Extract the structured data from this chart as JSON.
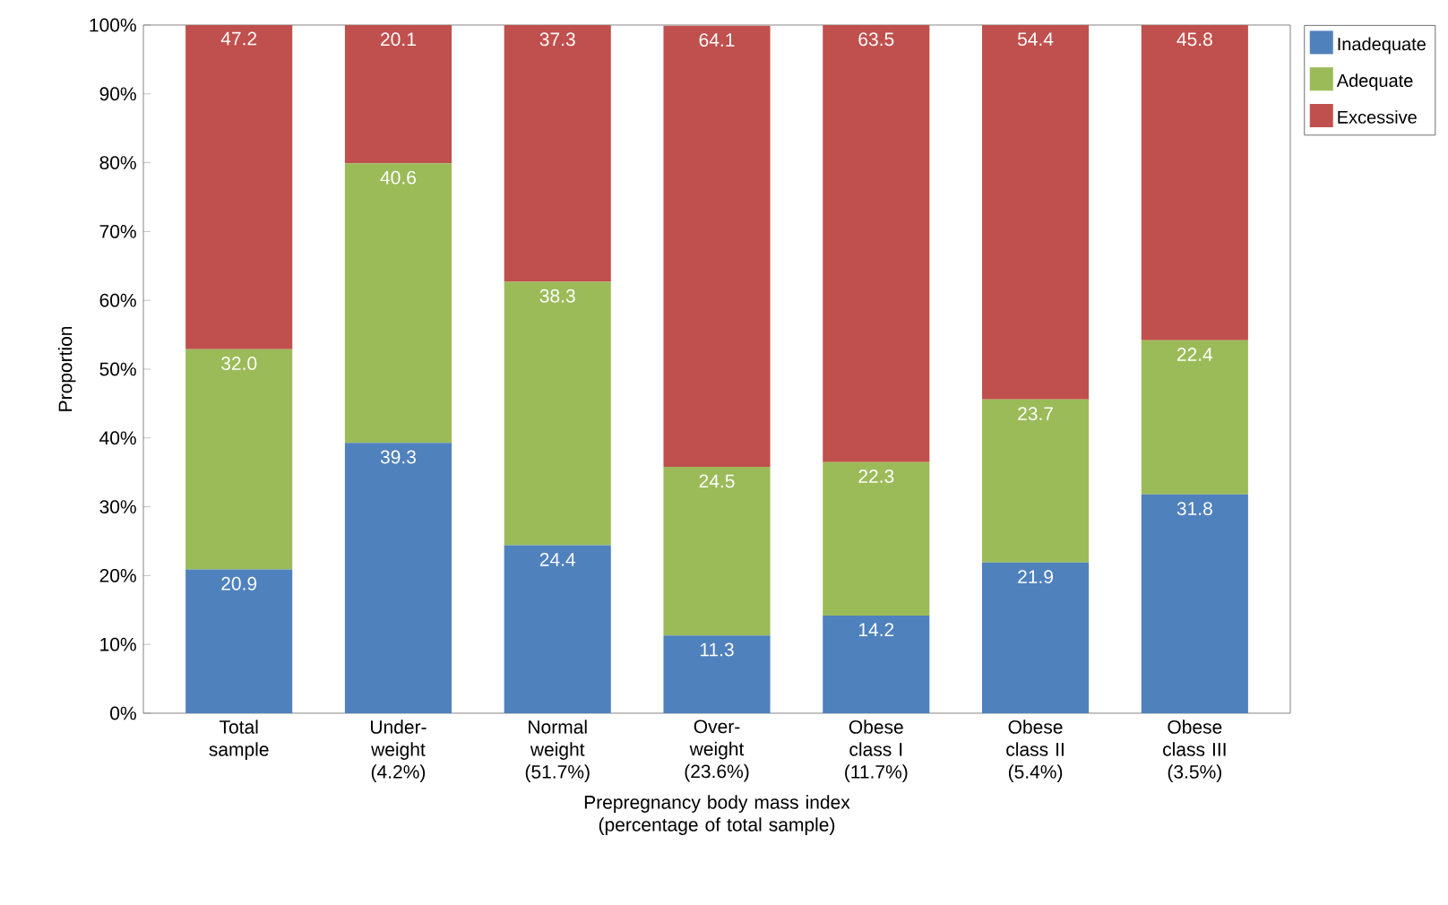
{
  "chart_data": {
    "type": "bar",
    "stacked": true,
    "xlabel": "Prepregnancy body mass index (percentage of total sample)",
    "ylabel": "Proportion",
    "categories": [
      "Total sample",
      "Under-weight (4.2%)",
      "Normal weight (51.7%)",
      "Over-weight (23.6%)",
      "Obese class I (11.7%)",
      "Obese class II (5.4%)",
      "Obese class III (3.5%)"
    ],
    "series": [
      {
        "name": "Inadequate",
        "color": "#4f81bd",
        "values": [
          20.9,
          39.3,
          24.4,
          11.3,
          14.2,
          21.9,
          31.8
        ],
        "value_labels": [
          "20.9",
          "39.3",
          "24.4",
          "11.3",
          "14.2",
          "21.9",
          "31.8"
        ]
      },
      {
        "name": "Adequate",
        "color": "#9bbb59",
        "values": [
          32.0,
          40.6,
          38.3,
          24.5,
          22.3,
          23.7,
          22.4
        ],
        "value_labels": [
          "32.0",
          "40.6",
          "38.3",
          "24.5",
          "22.3",
          "23.7",
          "22.4"
        ]
      },
      {
        "name": "Excessive",
        "color": "#c0504d",
        "values": [
          47.2,
          20.1,
          37.3,
          64.1,
          63.5,
          54.4,
          45.8
        ],
        "value_labels": [
          "47.2",
          "20.1",
          "37.3",
          "64.1",
          "63.5",
          "54.4",
          "45.8"
        ]
      }
    ],
    "ylim": [
      0,
      100
    ],
    "yticks": [
      {
        "value": 0,
        "label": "0%"
      },
      {
        "value": 10,
        "label": "10%"
      },
      {
        "value": 20,
        "label": "20%"
      },
      {
        "value": 30,
        "label": "30%"
      },
      {
        "value": 40,
        "label": "40%"
      },
      {
        "value": 50,
        "label": "50%"
      },
      {
        "value": 60,
        "label": "60%"
      },
      {
        "value": 70,
        "label": "70%"
      },
      {
        "value": 80,
        "label": "80%"
      },
      {
        "value": 90,
        "label": "90%"
      },
      {
        "value": 100,
        "label": "100%"
      }
    ],
    "legend": "top right",
    "grid": false
  }
}
